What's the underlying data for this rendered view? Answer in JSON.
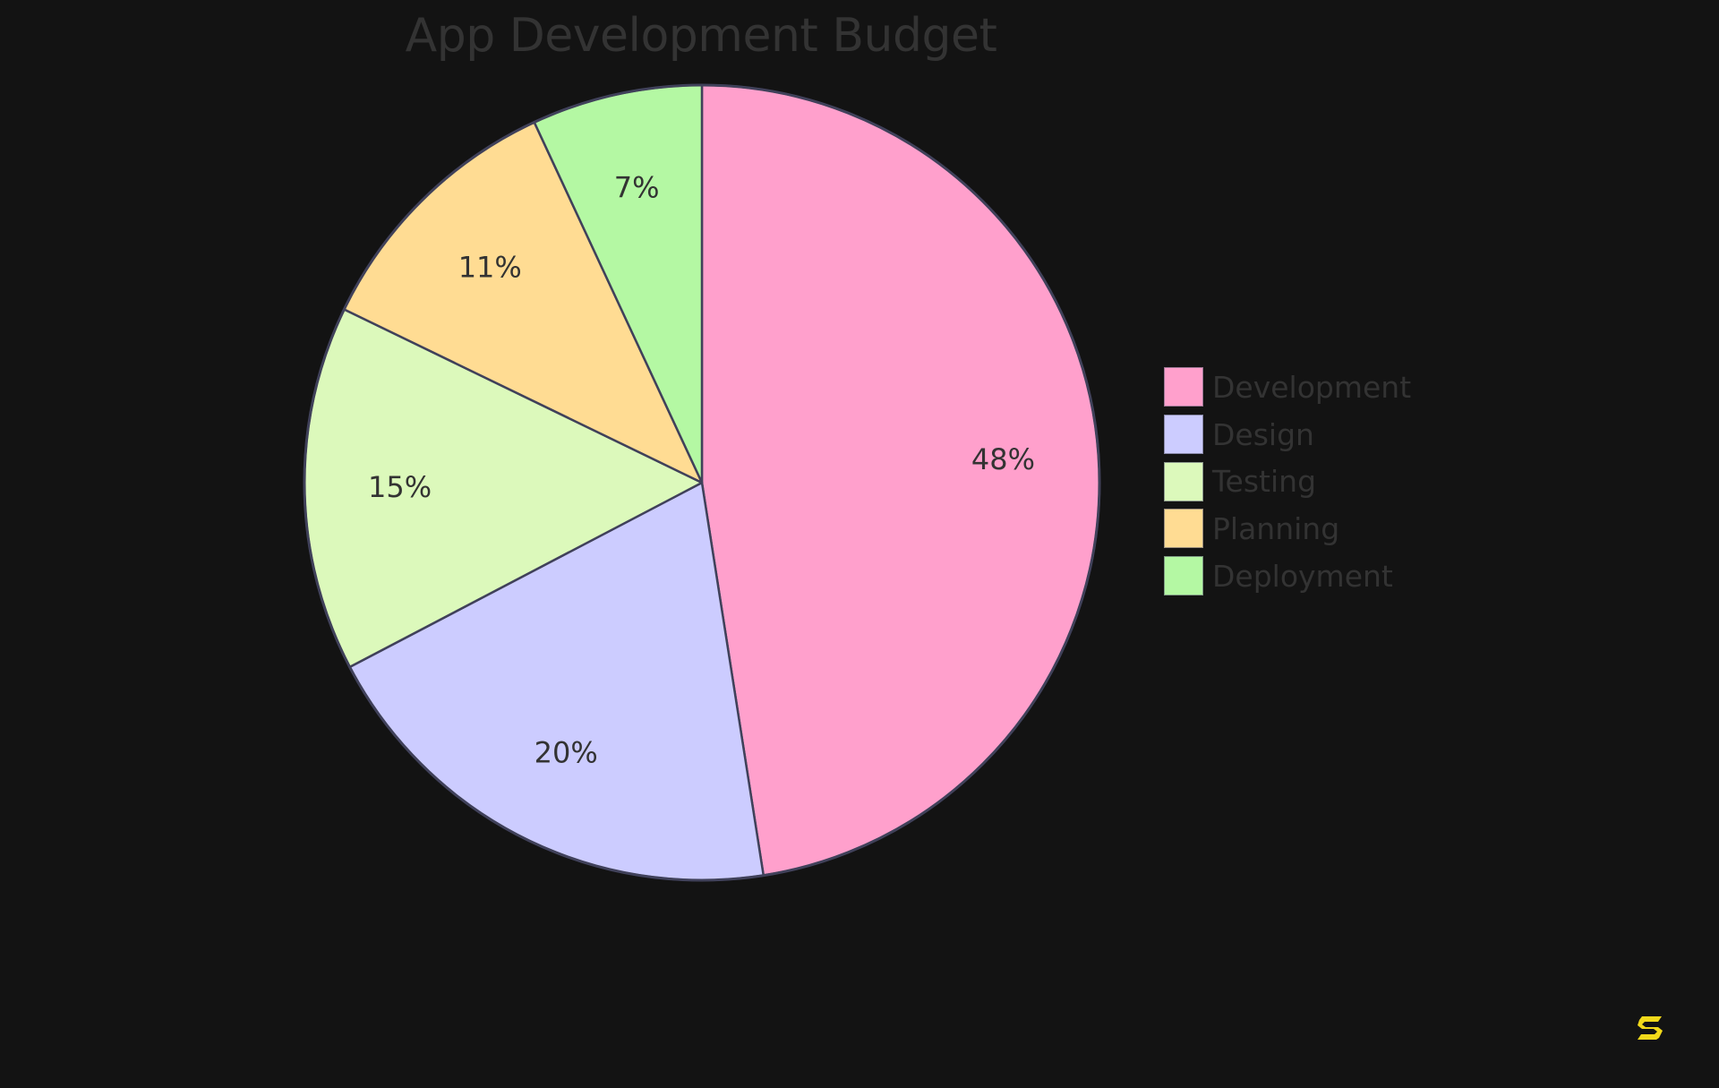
{
  "chart_data": {
    "type": "pie",
    "title": "App Development Budget",
    "categories": [
      "Development",
      "Design",
      "Testing",
      "Planning",
      "Deployment"
    ],
    "values": [
      48,
      20,
      15,
      11,
      7
    ],
    "labels": [
      "48%",
      "20%",
      "15%",
      "11%",
      "7%"
    ],
    "colors": [
      "#FFA0CC",
      "#CCCCFF",
      "#DCF9BB",
      "#FFDC93",
      "#B4F8A3"
    ],
    "start_angle_deg": 0,
    "direction": "clockwise",
    "legend_position": "right",
    "slice_border_color": "#40415A"
  },
  "legend": {
    "items": [
      {
        "label": "Development",
        "color": "#FFA0CC"
      },
      {
        "label": "Design",
        "color": "#CCCCFF"
      },
      {
        "label": "Testing",
        "color": "#DCF9BB"
      },
      {
        "label": "Planning",
        "color": "#FFDC93"
      },
      {
        "label": "Deployment",
        "color": "#B4F8A3"
      }
    ]
  },
  "logo": {
    "icon": "s-logo-icon",
    "color": "#F2D91A"
  }
}
